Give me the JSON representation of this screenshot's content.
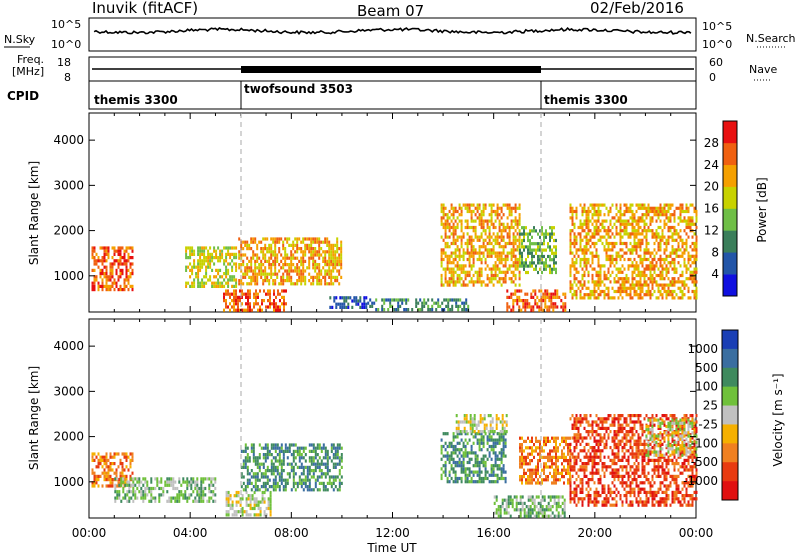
{
  "header": {
    "station": "Inuvik (fitACF)",
    "beam": "Beam 07",
    "date": "02/Feb/2016"
  },
  "noise_panel": {
    "left_label": "N.Sky",
    "right_label": "N.Search",
    "left_ticks": [
      "10^5",
      "10^0"
    ],
    "right_ticks": [
      "10^5",
      "10^0"
    ]
  },
  "freq_panel": {
    "left_label_1": "Freq.",
    "left_label_2": "[MHz]",
    "right_label": "Nave",
    "left_ticks": [
      "18",
      "8"
    ],
    "right_ticks": [
      "60",
      "0"
    ]
  },
  "cpid": {
    "label": "CPID",
    "segments": [
      {
        "name": "themis 3300",
        "start_h": 0,
        "end_h": 6
      },
      {
        "name": "twofsound 3503",
        "start_h": 6,
        "end_h": 18
      },
      {
        "name": "themis 3300",
        "start_h": 18,
        "end_h": 24
      }
    ]
  },
  "chart_data": [
    {
      "type": "heatmap",
      "name": "power",
      "ylabel": "Slant Range [km]",
      "y_ticks": [
        "1000",
        "2000",
        "3000",
        "4000"
      ],
      "ylim": [
        200,
        4600
      ],
      "colorbar_label": "Power [dB]",
      "colorbar_ticks": [
        "4",
        "8",
        "12",
        "16",
        "20",
        "24",
        "28"
      ],
      "colors": [
        "#1010e0",
        "#2255a8",
        "#3a7e5a",
        "#6fbf47",
        "#c8d200",
        "#f5a000",
        "#f06010",
        "#e81010"
      ],
      "regions": [
        {
          "t": [
            0.1,
            1.7
          ],
          "r": [
            700,
            1650
          ],
          "level": 6
        },
        {
          "t": [
            3.8,
            5.8
          ],
          "r": [
            800,
            1650
          ],
          "level": 4
        },
        {
          "t": [
            5.3,
            7.8
          ],
          "r": [
            250,
            700
          ],
          "level": 6
        },
        {
          "t": [
            5.9,
            10.0
          ],
          "r": [
            800,
            1850
          ],
          "level": 5
        },
        {
          "t": [
            9.5,
            11.0
          ],
          "r": [
            300,
            550
          ],
          "level": 1
        },
        {
          "t": [
            11.0,
            15.0
          ],
          "r": [
            250,
            500
          ],
          "level": 2
        },
        {
          "t": [
            13.9,
            17.0
          ],
          "r": [
            800,
            2600
          ],
          "level": 5
        },
        {
          "t": [
            16.5,
            18.8
          ],
          "r": [
            250,
            700
          ],
          "level": 6
        },
        {
          "t": [
            17.0,
            18.5
          ],
          "r": [
            1100,
            2100
          ],
          "level": 3
        },
        {
          "t": [
            19.0,
            24.0
          ],
          "r": [
            500,
            2600
          ],
          "level": 5
        }
      ]
    },
    {
      "type": "heatmap",
      "name": "velocity",
      "ylabel": "Slant Range [km]",
      "x_ticks": [
        "00:00",
        "04:00",
        "08:00",
        "12:00",
        "16:00",
        "20:00",
        "00:00"
      ],
      "xlabel": "Time UT",
      "y_ticks": [
        "1000",
        "2000",
        "3000",
        "4000"
      ],
      "ylim": [
        200,
        4600
      ],
      "colorbar_label": "Velocity [m s⁻¹]",
      "colorbar_ticks": [
        "1000",
        "500",
        "100",
        "25",
        "-25",
        "-100",
        "-500",
        "-1000"
      ],
      "colors": [
        "#1a3fb5",
        "#3a6ea0",
        "#3f8a5e",
        "#6fc03a",
        "#c0c0c0",
        "#f5b000",
        "#f08020",
        "#e83a10",
        "#e01010"
      ],
      "regions": [
        {
          "t": [
            0.1,
            1.7
          ],
          "r": [
            900,
            1650
          ],
          "level": 6
        },
        {
          "t": [
            1.0,
            5.0
          ],
          "r": [
            600,
            1100
          ],
          "level": 3
        },
        {
          "t": [
            5.4,
            7.2
          ],
          "r": [
            250,
            800
          ],
          "level": 4
        },
        {
          "t": [
            6.0,
            10.0
          ],
          "r": [
            800,
            1850
          ],
          "level": 2
        },
        {
          "t": [
            13.9,
            16.5
          ],
          "r": [
            1000,
            2100
          ],
          "level": 2
        },
        {
          "t": [
            14.5,
            16.5
          ],
          "r": [
            2100,
            2500
          ],
          "level": 4
        },
        {
          "t": [
            16.0,
            18.8
          ],
          "r": [
            250,
            700
          ],
          "level": 3
        },
        {
          "t": [
            17.0,
            19.0
          ],
          "r": [
            1000,
            2000
          ],
          "level": 6
        },
        {
          "t": [
            19.0,
            24.0
          ],
          "r": [
            500,
            2500
          ],
          "level": 7
        },
        {
          "t": [
            22.0,
            24.0
          ],
          "r": [
            1600,
            2400
          ],
          "level": 4
        }
      ]
    }
  ]
}
